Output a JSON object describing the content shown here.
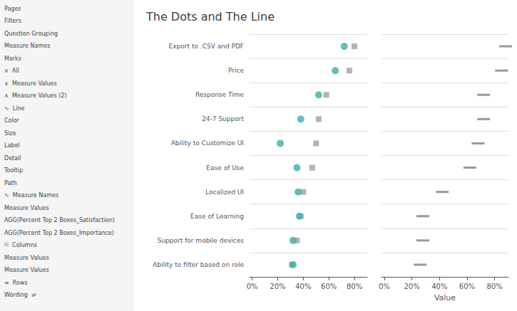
{
  "chart_data": [
    {
      "type": "scatter",
      "title": "The Dots and The Line",
      "categories": [
        "Export to .CSV and PDF",
        "Price",
        "Response Time",
        "24-7 Support",
        "Ability to Customize UI",
        "Ease of Use",
        "Localized UI",
        "Ease of Learning",
        "Support for mobile devices",
        "Ability to filter based on role"
      ],
      "series": [
        {
          "color": "#3aafa9",
          "marker": "circle",
          "values": [
            0.72,
            0.65,
            0.52,
            0.38,
            0.22,
            0.35,
            0.36,
            0.37,
            0.32,
            0.32
          ]
        },
        {
          "color": "#a0a0a0",
          "marker": "square",
          "values": [
            0.8,
            0.76,
            0.58,
            0.52,
            0.5,
            0.47,
            0.4,
            0.38,
            0.35,
            0.31
          ]
        }
      ],
      "xlim": [
        -0.02,
        0.9
      ],
      "xticks": [
        {
          "value": 0,
          "label": "0%"
        },
        {
          "value": 0.2,
          "label": "20%"
        },
        {
          "value": 0.4,
          "label": "40%"
        },
        {
          "value": 0.6,
          "label": "60%"
        },
        {
          "value": 0.8,
          "label": "80%"
        }
      ],
      "grid": true,
      "annotations": [
        "Pages",
        "Filters",
        "Question Grouping",
        "Measure Names",
        "Marks",
        "∨  All",
        "∨  Measure Values",
        "∧  Measure Values (2)",
        "∿  Line",
        "Color",
        "Size",
        "Label",
        "Detail",
        "Tooltip",
        "Path",
        "∿  Measure Names",
        "Measure Values",
        "AGG(Percent Top 2 Boxes_Satisfaction)",
        "AGG(Percent Top 2 Boxes_Importance)",
        "⫶⫶⫶  Columns",
        "Measure Values",
        "Measure Values",
        "≡  Rows",
        "Wording  ≓"
      ]
    },
    {
      "type": "scatter",
      "xlabel": "Value",
      "categories": [
        "Export to .CSV and PDF",
        "Price",
        "Response Time",
        "24-7 Support",
        "Ability to Customize UI",
        "Ease of Use",
        "Localized UI",
        "Ease of Learning",
        "Support for mobile devices",
        "Ability to filter based on role"
      ],
      "series": [
        {
          "color": "#808080",
          "marker": "dash",
          "values": [
            0.88,
            0.85,
            0.72,
            0.72,
            0.68,
            0.62,
            0.42,
            0.28,
            0.28,
            0.26
          ]
        }
      ],
      "xlim": [
        -0.02,
        0.9
      ],
      "xticks": [
        {
          "value": 0,
          "label": "0%"
        },
        {
          "value": 0.2,
          "label": "20%"
        },
        {
          "value": 0.4,
          "label": "40%"
        },
        {
          "value": 0.6,
          "label": "60%"
        },
        {
          "value": 0.8,
          "label": "80%"
        }
      ],
      "grid": true,
      "tick_labels": "x"
    }
  ]
}
